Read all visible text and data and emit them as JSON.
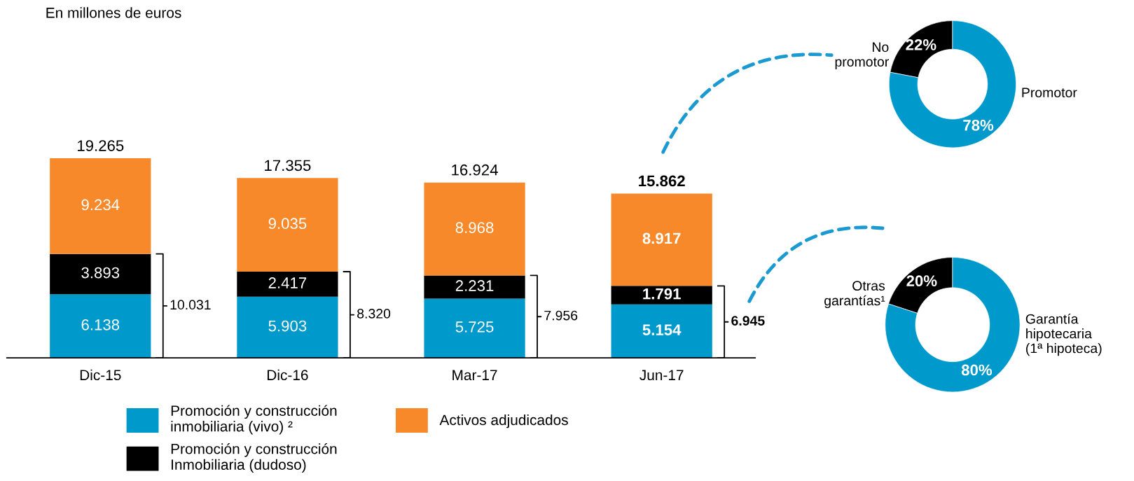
{
  "chart_data": [
    {
      "type": "bar",
      "stacked": true,
      "title": "En millones de euros",
      "categories": [
        "Dic-15",
        "Dic-16",
        "Mar-17",
        "Jun-17"
      ],
      "legend": "bottom",
      "series": [
        {
          "name": "Promoción y construcción\ninmobiliaria (vivo) ²",
          "color": "#0099cc",
          "values": [
            6138,
            5903,
            5725,
            5154
          ],
          "value_labels": [
            "6.138",
            "5.903",
            "5.725",
            "5.154"
          ]
        },
        {
          "name": "Promoción y construcción\nInmobiliaria (dudoso)",
          "color": "#000000",
          "values": [
            3893,
            2417,
            2231,
            1791
          ],
          "value_labels": [
            "3.893",
            "2.417",
            "2.231",
            "1.791"
          ]
        },
        {
          "name": "Activos adjudicados",
          "color": "#f7892b",
          "values": [
            9234,
            9035,
            8968,
            8917
          ],
          "value_labels": [
            "9.234",
            "9.035",
            "8.968",
            "8.917"
          ]
        }
      ],
      "totals": [
        "19.265",
        "17.355",
        "16.924",
        "15.862"
      ],
      "annotations": [
        "10.031",
        "8.320",
        "7.956",
        "6.945"
      ]
    },
    {
      "type": "donut",
      "categories": [
        "No\npromotor",
        "Promotor"
      ],
      "values": [
        22,
        78
      ],
      "colors": [
        "#000000",
        "#0099cc"
      ],
      "value_labels": [
        "22%",
        "78%"
      ]
    },
    {
      "type": "donut",
      "categories": [
        "Otras\ngarantías¹",
        "Garantía\nhipotecaria\n(1ª hipoteca)"
      ],
      "values": [
        20,
        80
      ],
      "colors": [
        "#000000",
        "#0099cc"
      ],
      "value_labels": [
        "20%",
        "80%"
      ]
    }
  ]
}
